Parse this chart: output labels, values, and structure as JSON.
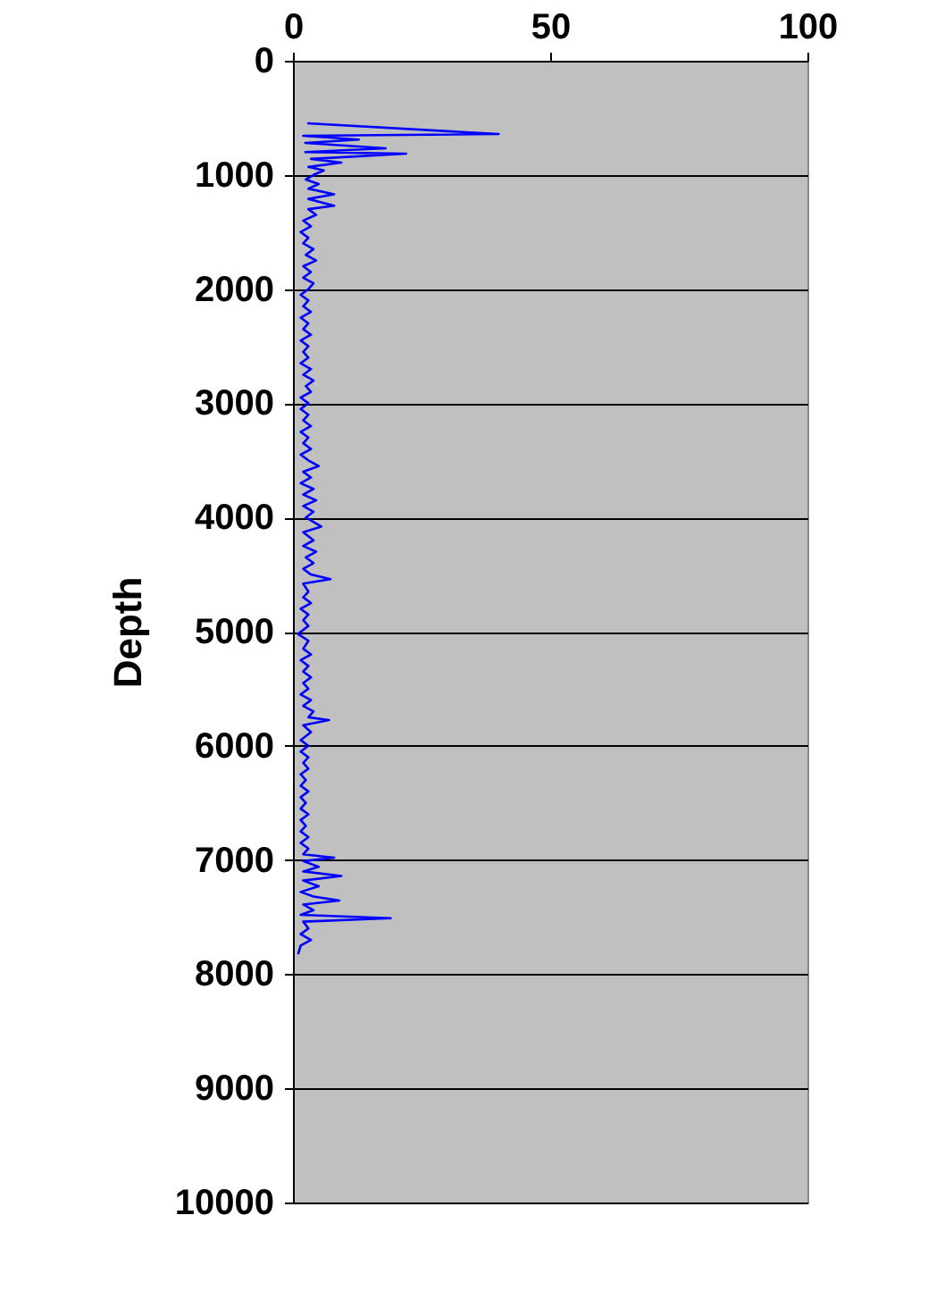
{
  "chart_data": {
    "type": "line",
    "orientation": "horizontal",
    "ylabel": "Depth",
    "x": [
      548,
      642,
      657,
      690,
      720,
      767,
      800,
      814,
      860,
      892,
      930,
      960,
      1000,
      1040,
      1080,
      1120,
      1170,
      1210,
      1270,
      1300,
      1350,
      1400,
      1450,
      1500,
      1550,
      1600,
      1650,
      1700,
      1750,
      1800,
      1850,
      1900,
      1950,
      2000,
      2050,
      2100,
      2150,
      2200,
      2250,
      2300,
      2350,
      2400,
      2450,
      2500,
      2550,
      2600,
      2650,
      2700,
      2750,
      2800,
      2850,
      2900,
      2950,
      3000,
      3050,
      3100,
      3150,
      3200,
      3250,
      3300,
      3350,
      3400,
      3450,
      3500,
      3550,
      3600,
      3650,
      3700,
      3750,
      3800,
      3850,
      3900,
      3950,
      4000,
      4080,
      4130,
      4200,
      4250,
      4300,
      4350,
      4400,
      4450,
      4500,
      4540,
      4580,
      4650,
      4700,
      4750,
      4800,
      4850,
      4900,
      4950,
      5020,
      5080,
      5150,
      5200,
      5250,
      5300,
      5350,
      5400,
      5450,
      5500,
      5550,
      5600,
      5650,
      5700,
      5750,
      5775,
      5820,
      5880,
      5950,
      6000,
      6050,
      6100,
      6150,
      6200,
      6250,
      6300,
      6350,
      6400,
      6450,
      6500,
      6550,
      6600,
      6650,
      6700,
      6750,
      6800,
      6850,
      6900,
      6950,
      6980,
      7010,
      7060,
      7100,
      7140,
      7180,
      7230,
      7280,
      7320,
      7355,
      7390,
      7440,
      7480,
      7510,
      7540,
      7600,
      7650,
      7700,
      7750,
      7825
    ],
    "series": [
      {
        "color": "#0000ff",
        "values": [
          2.8,
          40,
          2,
          12.8,
          2.4,
          18,
          2.4,
          22,
          3.5,
          9.4,
          3,
          6,
          4,
          2.5,
          5,
          3,
          8,
          3,
          8,
          3,
          4.5,
          2,
          3.5,
          1.5,
          3,
          2,
          4,
          2.5,
          4.5,
          2,
          3.5,
          2,
          4,
          3,
          1.5,
          3,
          2,
          3.5,
          1.5,
          3,
          2,
          3.5,
          1.5,
          3,
          2,
          3,
          1.5,
          3.5,
          2,
          4,
          2.5,
          3.5,
          1.5,
          3,
          1.5,
          3,
          2,
          3.5,
          1.5,
          3,
          2,
          3.5,
          1.5,
          3,
          5,
          2,
          3.5,
          1.5,
          4,
          2,
          4.5,
          2,
          4,
          2.5,
          5.5,
          2,
          4,
          2,
          4.5,
          2.5,
          4,
          2,
          3.5,
          7.3,
          2,
          3,
          2,
          3.5,
          1.5,
          3,
          2,
          3,
          1,
          3,
          2,
          3.5,
          1.5,
          3,
          2,
          3.5,
          2,
          3,
          1.5,
          3.5,
          2,
          4,
          3,
          7,
          2,
          3.5,
          1.5,
          3,
          1.5,
          3,
          2,
          3,
          1.5,
          2.5,
          1.5,
          3,
          1.5,
          2.5,
          1.5,
          3,
          1.5,
          2.5,
          1.5,
          3,
          1.5,
          3,
          2,
          8,
          2,
          5,
          2,
          9.4,
          2,
          5,
          1.5,
          4,
          9,
          2,
          4,
          1.5,
          19,
          2,
          3,
          1.5,
          3.5,
          1.5,
          1
        ]
      }
    ],
    "xlim": [
      0,
      100
    ],
    "xticks": [
      0,
      50,
      100
    ],
    "ylim": [
      10000,
      0
    ],
    "yticks": [
      0,
      1000,
      2000,
      3000,
      4000,
      5000,
      6000,
      7000,
      8000,
      9000,
      10000
    ],
    "grid": "y",
    "line_style": "solid",
    "marker": "none"
  }
}
